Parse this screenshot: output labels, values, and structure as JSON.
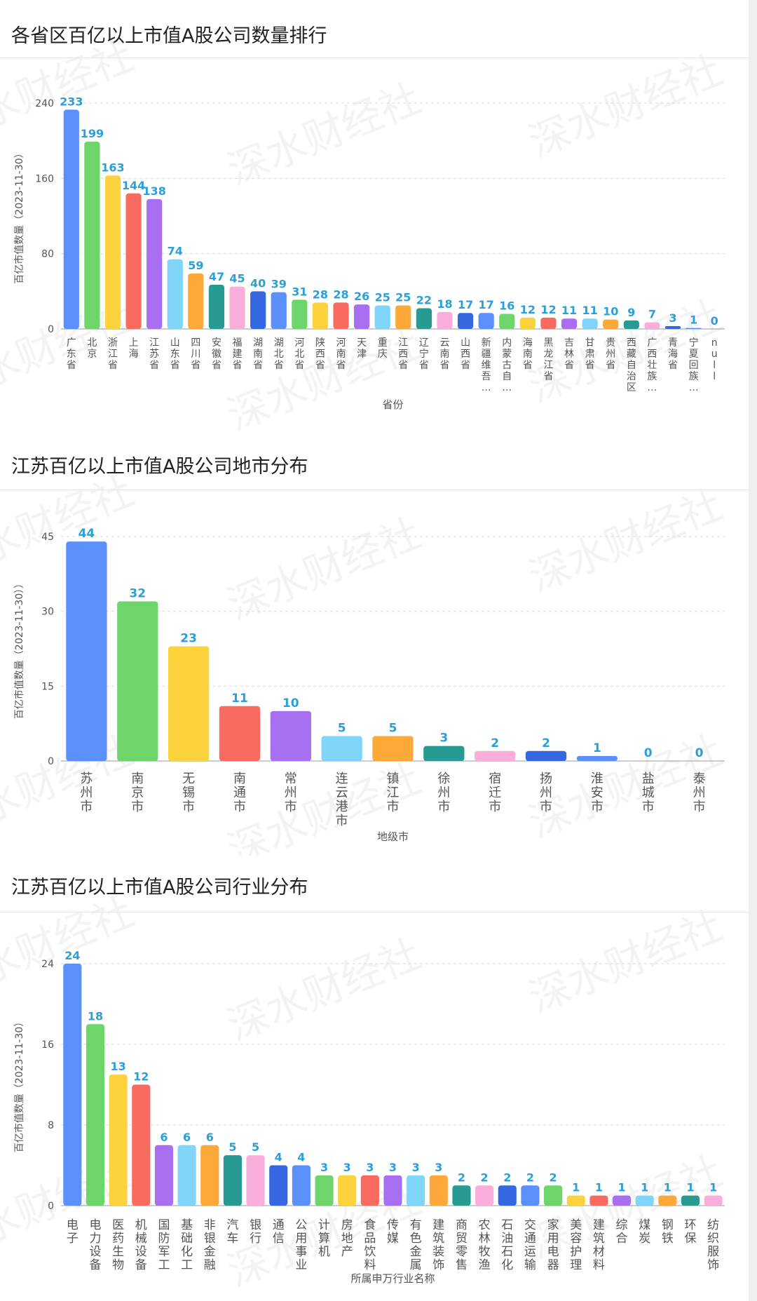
{
  "charts": [
    {
      "title": "各省区百亿以上市值A股公司数量排行",
      "chart_data": {
        "type": "bar",
        "xlabel": "省份",
        "ylabel": "百亿市值数量（2023-11-30）",
        "ylim": [
          0,
          240
        ],
        "yticks": [
          0,
          80,
          160,
          240
        ],
        "grid": true,
        "categories": [
          "广东省",
          "北京",
          "浙江省",
          "上海",
          "江苏省",
          "山东省",
          "四川省",
          "安徽省",
          "福建省",
          "湖南省",
          "湖北省",
          "河北省",
          "陕西省",
          "河南省",
          "天津",
          "重庆",
          "江西省",
          "辽宁省",
          "云南省",
          "山西省",
          "新疆维吾…",
          "内蒙古自…",
          "海南省",
          "黑龙江省",
          "吉林省",
          "甘肃省",
          "贵州省",
          "西藏自治区",
          "广西壮族…",
          "青海省",
          "宁夏回族…",
          "null"
        ],
        "values": [
          233,
          199,
          163,
          144,
          138,
          74,
          59,
          47,
          45,
          40,
          39,
          31,
          28,
          28,
          26,
          25,
          25,
          22,
          18,
          17,
          17,
          16,
          12,
          12,
          11,
          11,
          10,
          9,
          7,
          3,
          1,
          0
        ]
      }
    },
    {
      "title": "江苏百亿以上市值A股公司地市分布",
      "chart_data": {
        "type": "bar",
        "xlabel": "地级市",
        "ylabel": "百亿市值数量（2023-11-30））",
        "ylim": [
          0,
          45
        ],
        "yticks": [
          0,
          15,
          30,
          45
        ],
        "grid": true,
        "categories": [
          "苏州市",
          "南京市",
          "无锡市",
          "南通市",
          "常州市",
          "连云港市",
          "镇江市",
          "徐州市",
          "宿迁市",
          "扬州市",
          "淮安市",
          "盐城市",
          "泰州市"
        ],
        "values": [
          44,
          32,
          23,
          11,
          10,
          5,
          5,
          3,
          2,
          2,
          1,
          0,
          0
        ]
      }
    },
    {
      "title": "江苏百亿以上市值A股公司行业分布",
      "chart_data": {
        "type": "bar",
        "xlabel": "所属申万行业名称",
        "ylabel": "百亿市值数量（2023-11-30）",
        "ylim": [
          0,
          24
        ],
        "yticks": [
          0,
          8,
          16,
          24
        ],
        "grid": true,
        "categories": [
          "电子",
          "电力设备",
          "医药生物",
          "机械设备",
          "国防军工",
          "基础化工",
          "非银金融",
          "汽车",
          "银行",
          "通信",
          "公用事业",
          "计算机",
          "房地产",
          "食品饮料",
          "传媒",
          "有色金属",
          "建筑装饰",
          "商贸零售",
          "农林牧渔",
          "石油石化",
          "交通运输",
          "家用电器",
          "美容护理",
          "建筑材料",
          "综合",
          "煤炭",
          "钢铁",
          "环保",
          "纺织服饰"
        ],
        "values": [
          24,
          18,
          13,
          12,
          6,
          6,
          6,
          5,
          5,
          4,
          4,
          3,
          3,
          3,
          3,
          3,
          3,
          2,
          2,
          2,
          2,
          2,
          1,
          1,
          1,
          1,
          1,
          1,
          1
        ]
      }
    }
  ],
  "watermark": "深水财经社",
  "palette": [
    "#5b8ff9",
    "#6ed56a",
    "#fcd33c",
    "#f96a60",
    "#a86ff0",
    "#7fd6f8",
    "#fca93a",
    "#279a91",
    "#fcaedb",
    "#3568e0"
  ],
  "label_color": "#2a9fd8"
}
